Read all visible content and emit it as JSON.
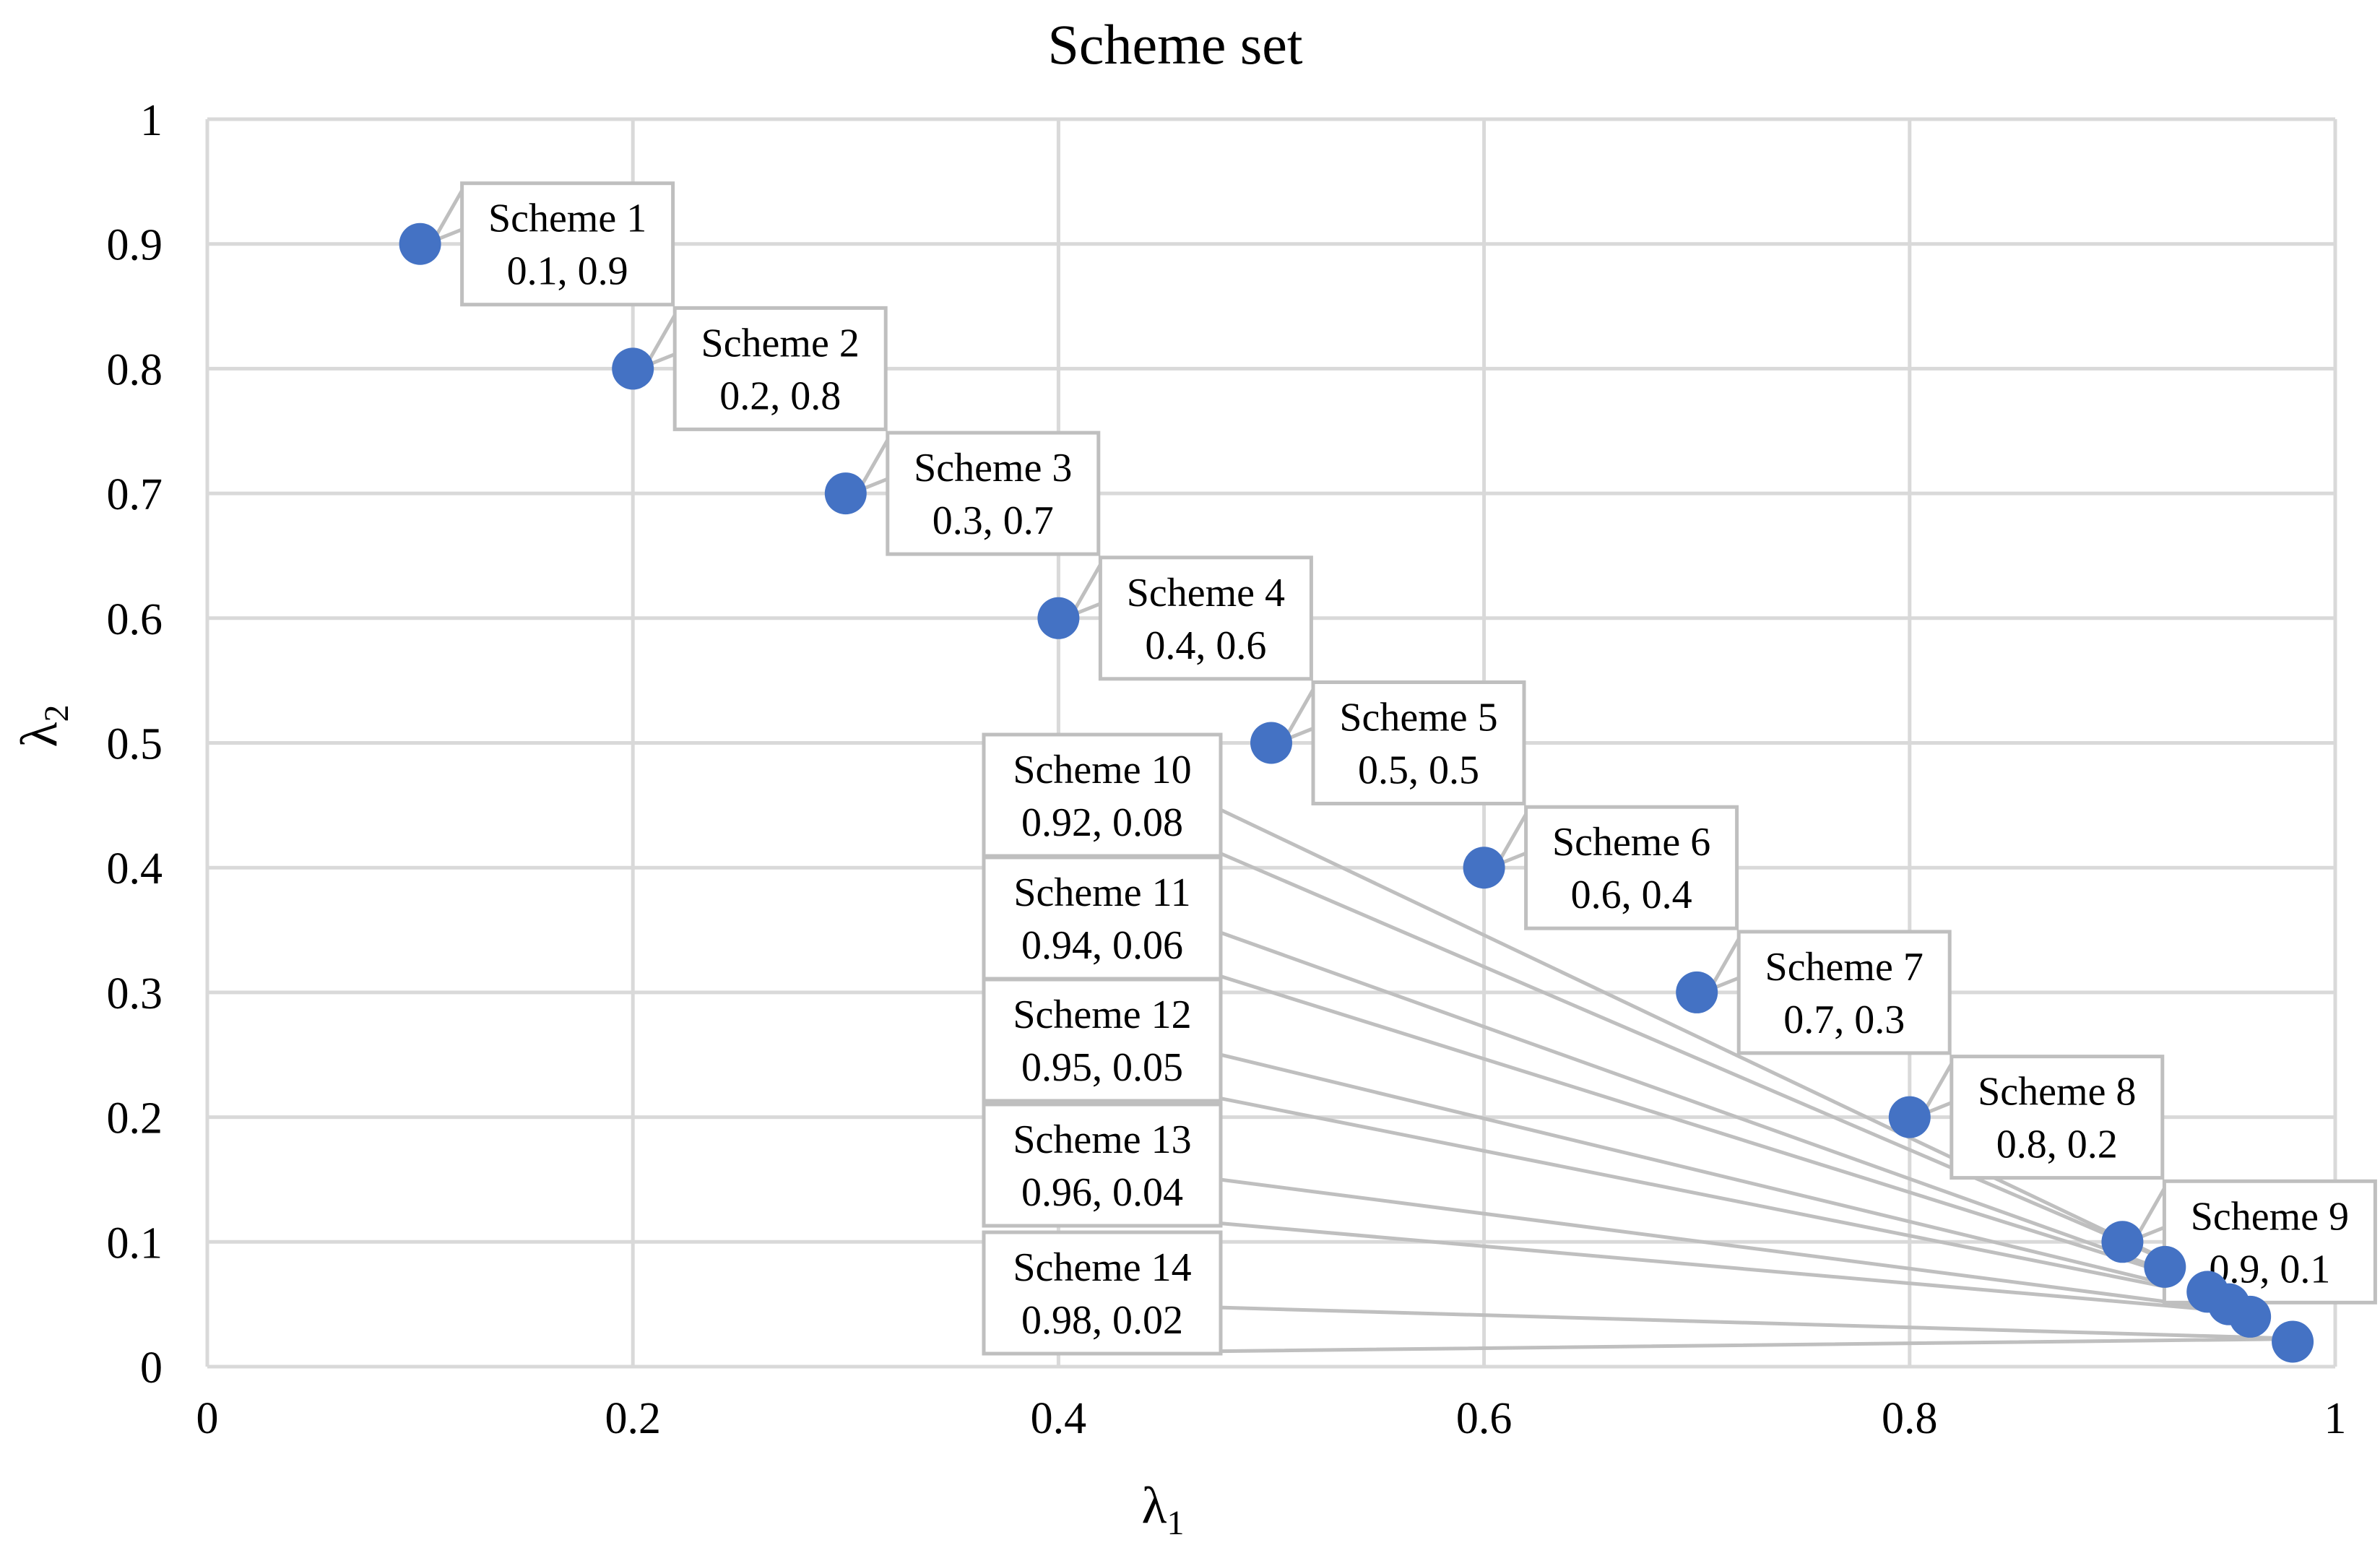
{
  "chart_data": {
    "type": "scatter",
    "title": "Scheme set",
    "xlabel": {
      "symbol": "λ",
      "subscript": "1"
    },
    "ylabel": {
      "symbol": "λ",
      "subscript": "2"
    },
    "xlim": [
      0,
      1
    ],
    "ylim": [
      0,
      1
    ],
    "grid": true,
    "point_color": "#4472c4",
    "x_ticks": [
      "0",
      "0.2",
      "0.4",
      "0.6",
      "0.8",
      "1"
    ],
    "y_ticks": [
      "0",
      "0.1",
      "0.2",
      "0.3",
      "0.4",
      "0.5",
      "0.6",
      "0.7",
      "0.8",
      "0.9",
      "1"
    ],
    "points": [
      {
        "x": 0.1,
        "y": 0.9,
        "name": "Scheme 1",
        "value_label": "0.1, 0.9"
      },
      {
        "x": 0.2,
        "y": 0.8,
        "name": "Scheme 2",
        "value_label": "0.2, 0.8"
      },
      {
        "x": 0.3,
        "y": 0.7,
        "name": "Scheme 3",
        "value_label": "0.3, 0.7"
      },
      {
        "x": 0.4,
        "y": 0.6,
        "name": "Scheme 4",
        "value_label": "0.4, 0.6"
      },
      {
        "x": 0.5,
        "y": 0.5,
        "name": "Scheme 5",
        "value_label": "0.5, 0.5"
      },
      {
        "x": 0.6,
        "y": 0.4,
        "name": "Scheme 6",
        "value_label": "0.6, 0.4"
      },
      {
        "x": 0.7,
        "y": 0.3,
        "name": "Scheme 7",
        "value_label": "0.7, 0.3"
      },
      {
        "x": 0.8,
        "y": 0.2,
        "name": "Scheme 8",
        "value_label": "0.8, 0.2"
      },
      {
        "x": 0.9,
        "y": 0.1,
        "name": "Scheme 9",
        "value_label": "0.9, 0.1"
      },
      {
        "x": 0.92,
        "y": 0.08,
        "name": "Scheme 10",
        "value_label": "0.92, 0.08"
      },
      {
        "x": 0.94,
        "y": 0.06,
        "name": "Scheme 11",
        "value_label": "0.94, 0.06"
      },
      {
        "x": 0.95,
        "y": 0.05,
        "name": "Scheme 12",
        "value_label": "0.95, 0.05"
      },
      {
        "x": 0.96,
        "y": 0.04,
        "name": "Scheme 13",
        "value_label": "0.96, 0.04"
      },
      {
        "x": 0.98,
        "y": 0.02,
        "name": "Scheme 14",
        "value_label": "0.98, 0.02"
      }
    ]
  }
}
